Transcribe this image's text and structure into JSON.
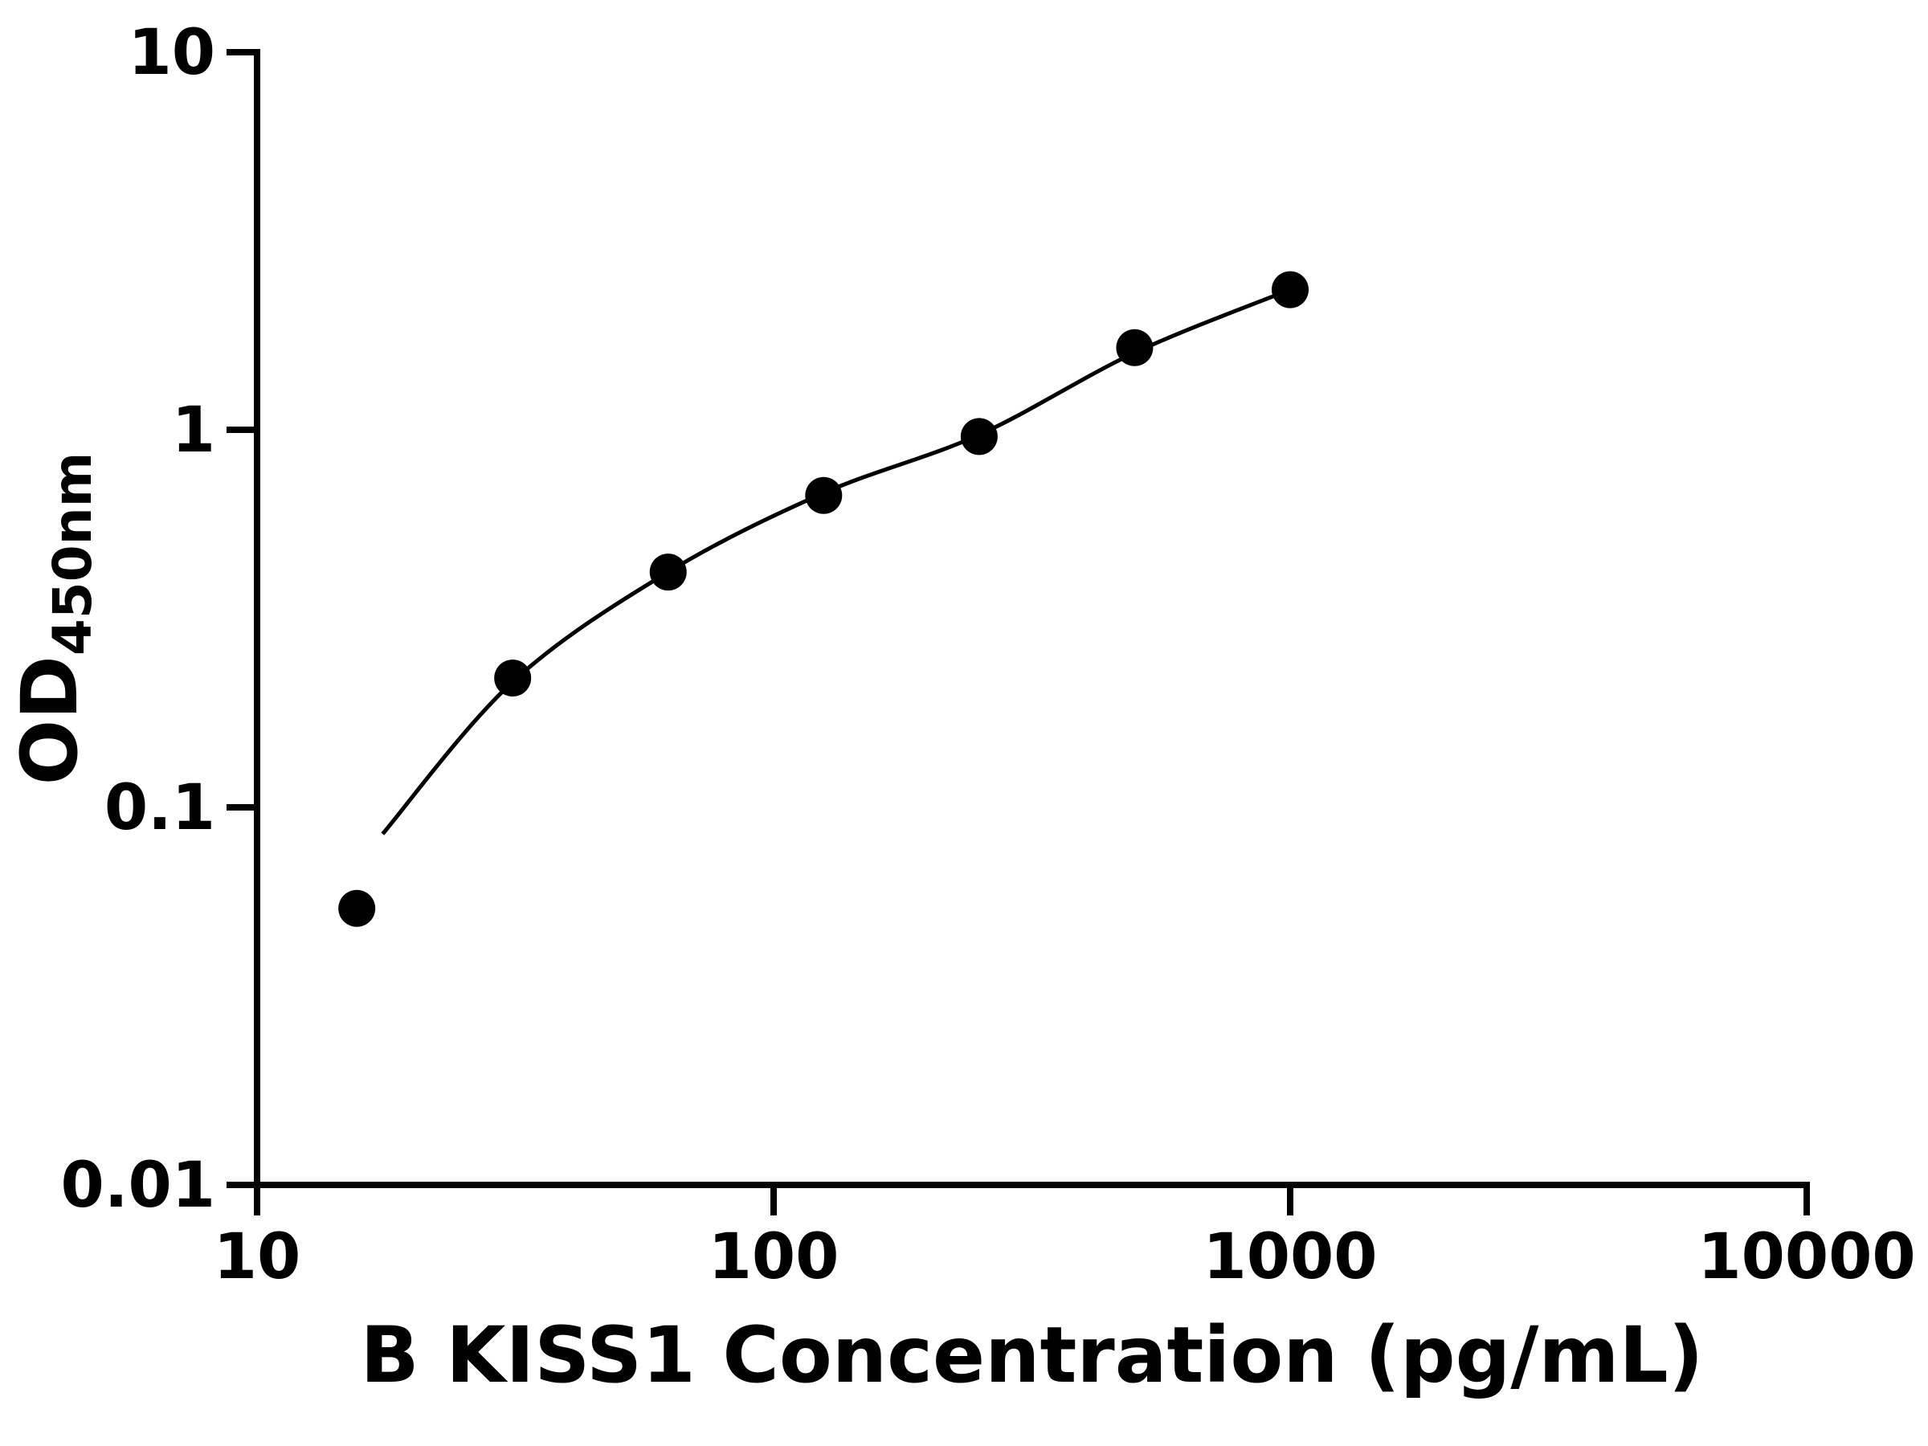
{
  "page": {
    "background": "#ffffff"
  },
  "chart_data": {
    "type": "scatter",
    "title": "",
    "xlabel": "B KISS1 Concentration (pg/mL)",
    "ylabel_main": "OD",
    "ylabel_sub": "450nm",
    "x_scale": "log",
    "y_scale": "log",
    "xlim": [
      10,
      10000
    ],
    "ylim": [
      0.01,
      10
    ],
    "x_ticks": [
      10,
      100,
      1000,
      10000
    ],
    "x_tick_labels": [
      "10",
      "100",
      "1000",
      "10000"
    ],
    "y_ticks": [
      10,
      1,
      0.1,
      0.01
    ],
    "y_tick_labels": [
      "10",
      "1",
      "0.1",
      "0.01"
    ],
    "grid": false,
    "legend": "none",
    "series": [
      {
        "name": "standard-points",
        "marker": "circle",
        "color": "#000000",
        "x": [
          15.6,
          31.25,
          62.5,
          125,
          250,
          500,
          1000
        ],
        "y": [
          0.054,
          0.22,
          0.42,
          0.67,
          0.96,
          1.65,
          2.35
        ]
      }
    ],
    "fit_curve": {
      "name": "fitted-standard-curve",
      "color": "#000000",
      "x": [
        17.5,
        31.25,
        62.5,
        125,
        250,
        500,
        1000
      ],
      "y": [
        0.085,
        0.215,
        0.42,
        0.68,
        0.97,
        1.6,
        2.35
      ]
    },
    "colors": {
      "axis": "#000000",
      "marker": "#000000",
      "curve": "#000000"
    }
  }
}
